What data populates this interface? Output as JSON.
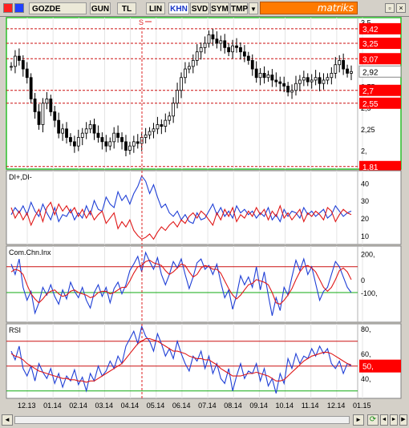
{
  "toolbar": {
    "symbol": "GOZDE",
    "buttons": [
      "GUN",
      "TL",
      "LIN",
      "KHN",
      "SVD",
      "SYM",
      "TMP"
    ],
    "active": "KHN",
    "dropdown_glyph": "▼",
    "brand": "matriks",
    "close_glyph": "×",
    "accent": "#ff7a00"
  },
  "colors": {
    "candle": "#000000",
    "di_plus": "#1f3fd6",
    "di_minus": "#e01818",
    "level_bg": "#ff0000",
    "level_text": "#ffffff",
    "red_line": "#cc1111",
    "green_line": "#11aa11"
  },
  "chart_data": [
    {
      "type": "candlestick",
      "title": "",
      "y_ticks": [
        "3,5",
        "3,25",
        "2,75",
        "2,5",
        "2,25",
        "2,"
      ],
      "levels": [
        {
          "label": "3,42",
          "value": 3.42
        },
        {
          "label": "3,25",
          "value": 3.25
        },
        {
          "label": "3,07",
          "value": 3.07
        },
        {
          "label": "2,7",
          "value": 2.7
        },
        {
          "label": "2,55",
          "value": 2.55
        },
        {
          "label": "1,81",
          "value": 1.81
        }
      ],
      "last_price_label": "2,92",
      "last_price": 2.92,
      "signal_marker": "S",
      "closes": [
        2.98,
        3.1,
        3.05,
        2.95,
        2.85,
        2.6,
        2.45,
        2.3,
        2.55,
        2.6,
        2.45,
        2.35,
        2.2,
        2.25,
        2.15,
        2.1,
        2.05,
        2.15,
        2.2,
        2.25,
        2.3,
        2.2,
        2.15,
        2.1,
        2.05,
        2.1,
        2.2,
        2.15,
        2.1,
        2.0,
        2.05,
        2.1,
        2.08,
        2.15,
        2.18,
        2.22,
        2.25,
        2.3,
        2.28,
        2.35,
        2.4,
        2.55,
        2.7,
        2.85,
        2.95,
        2.98,
        3.05,
        3.15,
        3.2,
        3.25,
        3.35,
        3.3,
        3.25,
        3.28,
        3.2,
        3.15,
        3.22,
        3.2,
        3.15,
        3.1,
        3.05,
        2.95,
        2.85,
        2.9,
        2.85,
        2.88,
        2.82,
        2.8,
        2.78,
        2.75,
        2.68,
        2.7,
        2.78,
        2.82,
        2.85,
        2.8,
        2.82,
        2.85,
        2.78,
        2.82,
        2.85,
        2.9,
        3.0,
        3.05,
        2.95,
        2.9,
        2.92
      ],
      "ylim": [
        1.78,
        3.55
      ]
    },
    {
      "type": "line",
      "title": "DI+,DI-",
      "y_ticks": [
        "40",
        "30",
        "20",
        "10"
      ],
      "ylim": [
        5,
        47
      ],
      "series": [
        {
          "name": "DI+",
          "values": [
            22,
            26,
            23,
            27,
            22,
            29,
            24,
            21,
            28,
            23,
            19,
            26,
            18,
            22,
            21,
            25,
            19,
            23,
            20,
            27,
            22,
            30,
            25,
            24,
            32,
            28,
            26,
            35,
            30,
            33,
            28,
            34,
            38,
            44,
            41,
            34,
            39,
            32,
            26,
            28,
            23,
            21,
            24,
            19,
            22,
            18,
            17,
            23,
            19,
            20,
            24,
            28,
            22,
            26,
            21,
            24,
            20,
            27,
            23,
            25,
            22,
            24,
            20,
            23,
            21,
            26,
            19,
            22,
            18,
            25,
            21,
            24,
            23,
            20,
            26,
            22,
            24,
            21,
            23,
            25,
            20,
            22,
            27,
            24,
            21,
            23,
            24
          ]
        },
        {
          "name": "DI-",
          "values": [
            26,
            20,
            24,
            19,
            23,
            16,
            21,
            25,
            18,
            26,
            29,
            22,
            28,
            24,
            27,
            23,
            26,
            21,
            25,
            20,
            24,
            19,
            22,
            24,
            17,
            20,
            23,
            14,
            18,
            15,
            19,
            13,
            10,
            8,
            9,
            11,
            8,
            12,
            15,
            13,
            16,
            18,
            15,
            19,
            17,
            21,
            23,
            20,
            24,
            22,
            19,
            16,
            23,
            19,
            25,
            21,
            26,
            18,
            22,
            20,
            24,
            21,
            26,
            22,
            25,
            19,
            24,
            21,
            27,
            20,
            23,
            19,
            22,
            25,
            18,
            23,
            21,
            24,
            22,
            19,
            26,
            24,
            18,
            22,
            25,
            23,
            22
          ]
        }
      ]
    },
    {
      "type": "line",
      "title": "Com.Chn.Inx",
      "y_ticks": [
        "200,",
        "0",
        "-100,"
      ],
      "red_level": 100,
      "green_level": -100,
      "ylim": [
        -330,
        260
      ],
      "series": [
        {
          "name": "CCI",
          "values": [
            120,
            40,
            160,
            -60,
            -160,
            -90,
            -260,
            -180,
            -60,
            -120,
            -40,
            -130,
            -190,
            -80,
            -150,
            -20,
            -90,
            -140,
            -60,
            -160,
            -220,
            -100,
            -40,
            -130,
            -60,
            -180,
            -70,
            -20,
            -110,
            -40,
            70,
            120,
            180,
            60,
            210,
            140,
            80,
            170,
            40,
            -40,
            40,
            140,
            90,
            160,
            40,
            -70,
            20,
            130,
            160,
            80,
            110,
            40,
            120,
            -20,
            -140,
            -80,
            -230,
            -120,
            30,
            -40,
            20,
            -60,
            100,
            -80,
            60,
            -120,
            -280,
            -140,
            -240,
            -60,
            -120,
            20,
            150,
            70,
            160,
            40,
            100,
            -30,
            -160,
            -90,
            -60,
            40,
            140,
            100,
            20,
            -60,
            -100
          ]
        },
        {
          "name": "CCI MA",
          "values": [
            60,
            80,
            70,
            40,
            -40,
            -110,
            -150,
            -180,
            -150,
            -110,
            -90,
            -80,
            -110,
            -130,
            -120,
            -90,
            -80,
            -100,
            -110,
            -120,
            -140,
            -130,
            -100,
            -90,
            -90,
            -110,
            -100,
            -80,
            -60,
            -60,
            -10,
            50,
            100,
            110,
            140,
            150,
            130,
            120,
            110,
            70,
            40,
            60,
            90,
            120,
            110,
            60,
            20,
            40,
            90,
            110,
            100,
            80,
            80,
            50,
            -10,
            -70,
            -120,
            -150,
            -120,
            -80,
            -40,
            -30,
            0,
            -10,
            -20,
            -40,
            -100,
            -180,
            -190,
            -160,
            -120,
            -70,
            0,
            60,
            100,
            110,
            90,
            60,
            0,
            -60,
            -90,
            -60,
            0,
            70,
            90,
            60,
            0
          ]
        }
      ]
    },
    {
      "type": "line",
      "title": "RSI",
      "y_ticks": [
        "80,",
        "60,",
        "50,",
        "40,"
      ],
      "red_level": 70,
      "green_level": 30,
      "highlight_label": "50,",
      "ylim": [
        24,
        84
      ],
      "series": [
        {
          "name": "RSI",
          "values": [
            62,
            55,
            66,
            48,
            42,
            50,
            38,
            52,
            45,
            40,
            48,
            36,
            44,
            33,
            42,
            38,
            47,
            35,
            41,
            30,
            44,
            38,
            50,
            42,
            46,
            54,
            48,
            58,
            52,
            66,
            72,
            78,
            68,
            82,
            74,
            70,
            62,
            76,
            68,
            58,
            64,
            56,
            70,
            60,
            52,
            46,
            58,
            54,
            62,
            48,
            58,
            44,
            52,
            40,
            36,
            48,
            30,
            42,
            52,
            40,
            46,
            44,
            52,
            38,
            48,
            34,
            40,
            28,
            44,
            36,
            56,
            48,
            60,
            52,
            58,
            56,
            64,
            58,
            66,
            60,
            64,
            52,
            48,
            54,
            44,
            52,
            50
          ]
        },
        {
          "name": "RSI MA",
          "values": [
            60,
            58,
            57,
            55,
            52,
            50,
            48,
            46,
            45,
            44,
            43,
            42,
            41,
            40,
            40,
            39,
            39,
            38,
            38,
            37,
            38,
            38,
            40,
            42,
            44,
            46,
            48,
            50,
            52,
            56,
            60,
            64,
            68,
            70,
            72,
            72,
            71,
            70,
            68,
            66,
            64,
            62,
            62,
            61,
            60,
            58,
            57,
            56,
            56,
            55,
            55,
            53,
            51,
            48,
            46,
            44,
            42,
            42,
            42,
            43,
            44,
            44,
            45,
            44,
            43,
            42,
            40,
            38,
            38,
            39,
            42,
            45,
            48,
            51,
            54,
            56,
            58,
            59,
            60,
            61,
            61,
            60,
            58,
            56,
            54,
            52,
            51
          ]
        }
      ]
    }
  ],
  "x_axis": {
    "labels": [
      "12.13",
      "01.14",
      "02.14",
      "03.14",
      "04.14",
      "05.14",
      "06.14",
      "07.14",
      "08.14",
      "09.14",
      "10.14",
      "11.14",
      "12.14",
      "01.15"
    ]
  },
  "scroll": {
    "left_glyph": "◄",
    "right_glyph": "►"
  }
}
